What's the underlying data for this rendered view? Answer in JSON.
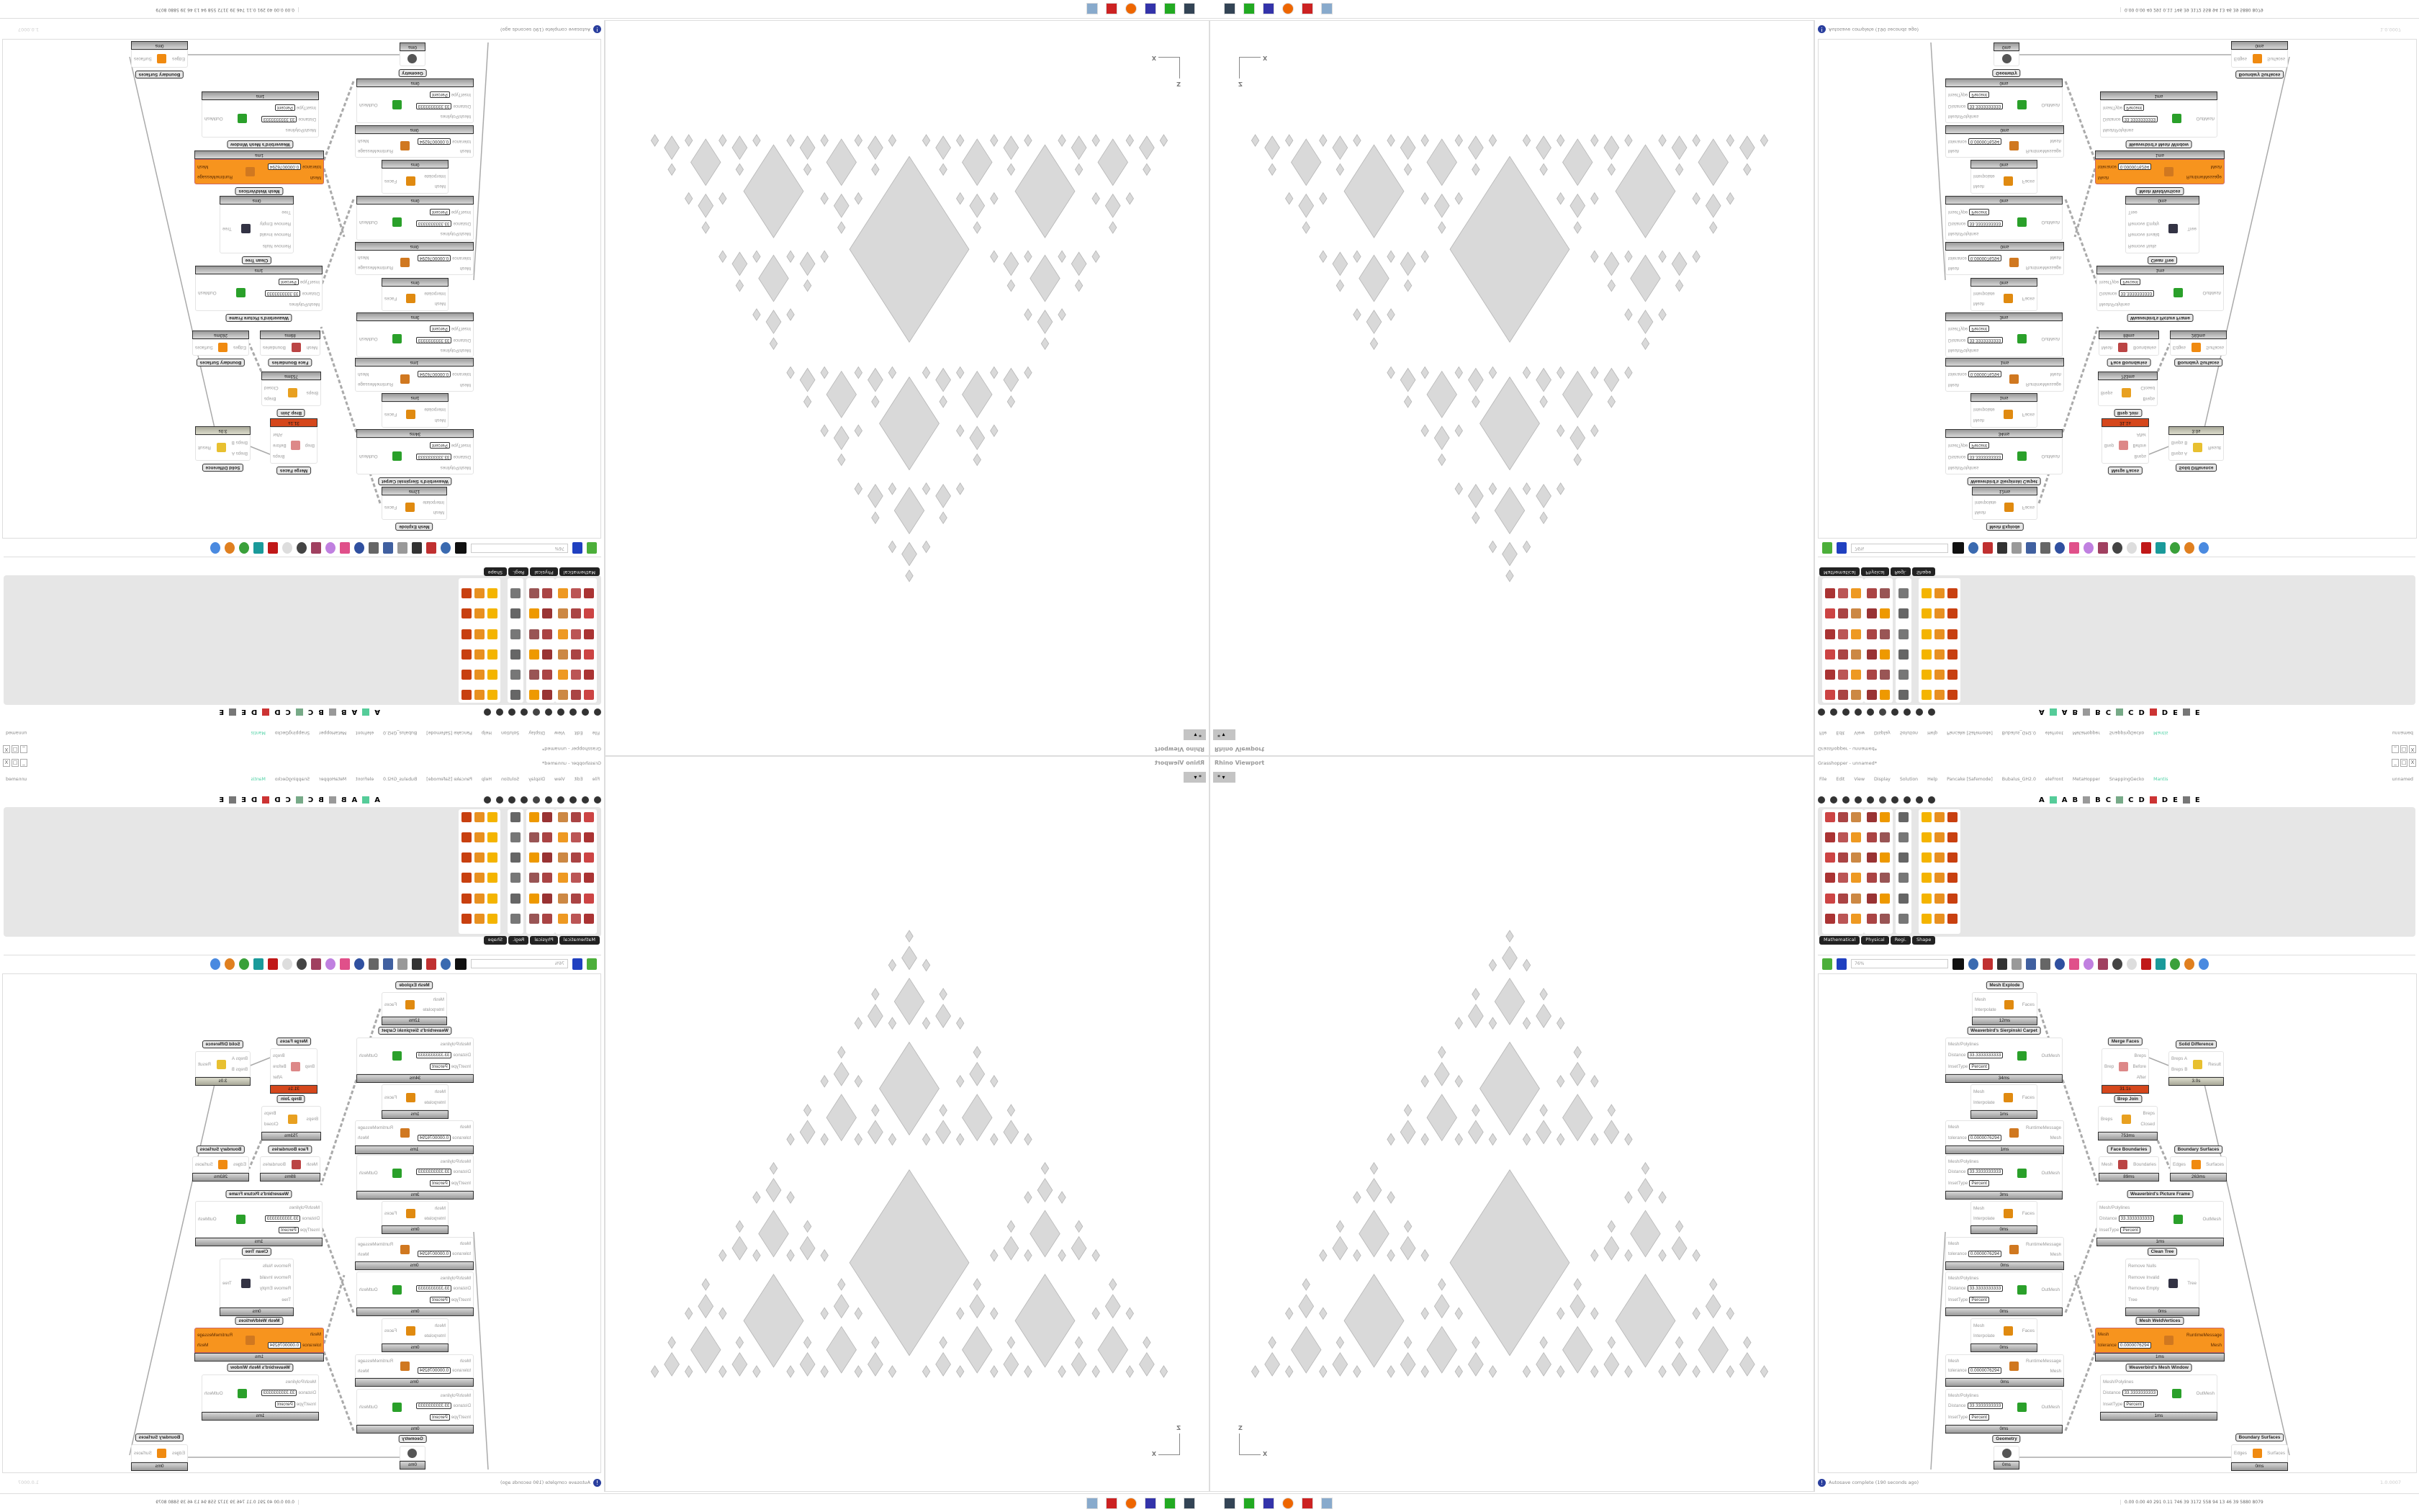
{
  "taskbar": {
    "status_numbers": "0.00 0.00 40 291 0.11 746 39 3172 558 94 13 46 39 5880 8079"
  },
  "viewport": {
    "title": "Rhino Viewport",
    "view_button": "*",
    "axis_z": "Z",
    "axis_x": "X",
    "mesh_color": "#d9d9d9"
  },
  "grasshopper": {
    "title": "Grasshopper - unnamed*",
    "document_name": "unnamed",
    "menu": [
      "File",
      "Edit",
      "View",
      "Display",
      "Solution",
      "Help",
      "Pancake [Safemode]",
      "Bubalus_GH2.0",
      "eleFront",
      "MetaHopper",
      "SnappingGecko",
      "Mantis"
    ],
    "active_menu_color": "#4fd1a5",
    "tab_letters": [
      "A",
      "A",
      "B",
      "B",
      "C",
      "C",
      "D",
      "D",
      "E",
      "E"
    ],
    "ribbon_groups": [
      "Mathematical",
      "Physical",
      "Regi.",
      "Shape"
    ],
    "zoom": "76%",
    "status": "Autosave complete (190 seconds ago)",
    "version": "1.0.0007",
    "nodes": [
      {
        "label": "Mesh Explode",
        "inputs": [
          {
            "name": "Mesh"
          },
          {
            "name": "Interpolate"
          }
        ],
        "outputs": [
          "Faces"
        ],
        "time": "12ms",
        "icon": "explode"
      },
      {
        "label": "Weaverbird's Sierpinski Carpet",
        "inputs": [
          {
            "name": "Mesh/Polylines"
          },
          {
            "name": "Distance",
            "value": "33.3333333333"
          },
          {
            "name": "InsetType",
            "value": "Percent"
          }
        ],
        "outputs": [
          "OutMesh"
        ],
        "time": "34ms",
        "icon": "wb"
      },
      {
        "inputs": [
          {
            "name": "Mesh"
          },
          {
            "name": "Interpolate"
          }
        ],
        "outputs": [
          "Faces"
        ],
        "time": "1ms",
        "icon": "explode"
      },
      {
        "inputs": [
          {
            "name": "Mesh"
          },
          {
            "name": "tolerance",
            "value": "0.0000076294"
          }
        ],
        "outputs": [
          "RuntimeMessage",
          "Mesh"
        ],
        "time": "1ms",
        "icon": "weld"
      },
      {
        "inputs": [
          {
            "name": "Mesh/Polylines"
          },
          {
            "name": "Distance",
            "value": "33.3333333333"
          },
          {
            "name": "InsetType",
            "value": "Percent"
          }
        ],
        "outputs": [
          "OutMesh"
        ],
        "time": "3ms",
        "icon": "wb"
      },
      {
        "inputs": [
          {
            "name": "Mesh"
          },
          {
            "name": "Interpolate"
          }
        ],
        "outputs": [
          "Faces"
        ],
        "time": "0ms",
        "icon": "explode"
      },
      {
        "inputs": [
          {
            "name": "Mesh"
          },
          {
            "name": "tolerance",
            "value": "0.0000076294"
          }
        ],
        "outputs": [
          "RuntimeMessage",
          "Mesh"
        ],
        "time": "0ms",
        "icon": "weld"
      },
      {
        "inputs": [
          {
            "name": "Mesh/Polylines"
          },
          {
            "name": "Distance",
            "value": "33.3333333333"
          },
          {
            "name": "InsetType",
            "value": "Percent"
          }
        ],
        "outputs": [
          "OutMesh"
        ],
        "time": "0ms",
        "icon": "wb"
      },
      {
        "inputs": [
          {
            "name": "Mesh"
          },
          {
            "name": "Interpolate"
          }
        ],
        "outputs": [
          "Faces"
        ],
        "time": "0ms",
        "icon": "explode"
      },
      {
        "inputs": [
          {
            "name": "Mesh"
          },
          {
            "name": "tolerance",
            "value": "0.0000076294"
          }
        ],
        "outputs": [
          "RuntimeMessage",
          "Mesh"
        ],
        "time": "0ms",
        "icon": "weld"
      },
      {
        "inputs": [
          {
            "name": "Mesh/Polylines"
          },
          {
            "name": "Distance",
            "value": "33.3333333333"
          },
          {
            "name": "InsetType",
            "value": "Percent"
          }
        ],
        "outputs": [
          "OutMesh"
        ],
        "time": "0ms",
        "icon": "wb"
      },
      {
        "label": "Geometry",
        "inputs": [],
        "outputs": [],
        "time": "0ms",
        "icon": "geo"
      },
      {
        "label": "Merge Faces",
        "inputs": [
          {
            "name": "Brep"
          }
        ],
        "outputs": [
          "Breps",
          "Before",
          "After"
        ],
        "time": "31.1s",
        "icon": "merge",
        "state": "err"
      },
      {
        "label": "Solid Difference",
        "inputs": [
          {
            "name": "Breps A"
          },
          {
            "name": "Breps B"
          }
        ],
        "outputs": [
          "Result"
        ],
        "time": "3.0s",
        "icon": "solid",
        "state": "warn"
      },
      {
        "label": "Brep Join",
        "inputs": [
          {
            "name": "Breps"
          }
        ],
        "outputs": [
          "Breps",
          "Closed"
        ],
        "time": "753ms",
        "icon": "join"
      },
      {
        "label": "Face Boundaries",
        "inputs": [
          {
            "name": "Mesh"
          }
        ],
        "outputs": [
          "Boundaries"
        ],
        "time": "89ms",
        "icon": "face"
      },
      {
        "label": "Boundary Surfaces",
        "inputs": [
          {
            "name": "Edges"
          }
        ],
        "outputs": [
          "Surfaces"
        ],
        "time": "263ms",
        "icon": "bsrf"
      },
      {
        "label": "Weaverbird's Picture Frame",
        "inputs": [
          {
            "name": "Mesh/Polylines"
          },
          {
            "name": "Distance",
            "value": "33.3333333333"
          },
          {
            "name": "InsetType",
            "value": "Percent"
          }
        ],
        "outputs": [
          "OutMesh"
        ],
        "time": "1ms",
        "icon": "wb"
      },
      {
        "label": "Clean Tree",
        "inputs": [
          {
            "name": "Remove Nulls"
          },
          {
            "name": "Remove Invalid"
          },
          {
            "name": "Remove Empty"
          },
          {
            "name": "Tree"
          }
        ],
        "outputs": [
          "Tree"
        ],
        "time": "0ms",
        "icon": "clean"
      },
      {
        "label": "Mesh WeldVertices",
        "inputs": [
          {
            "name": "Mesh"
          },
          {
            "name": "tolerance",
            "value": "0.0000076294"
          }
        ],
        "outputs": [
          "RuntimeMessage",
          "Mesh"
        ],
        "time": "1ms",
        "icon": "weld",
        "state": "sel"
      },
      {
        "label": "Weaverbird's Mesh Window",
        "inputs": [
          {
            "name": "Mesh/Polylines"
          },
          {
            "name": "Distance",
            "value": "33.3333333333"
          },
          {
            "name": "InsetType",
            "value": "Percent"
          }
        ],
        "outputs": [
          "OutMesh"
        ],
        "time": "1ms",
        "icon": "wb"
      },
      {
        "label": "Boundary Surfaces",
        "inputs": [
          {
            "name": "Edges"
          }
        ],
        "outputs": [
          "Surfaces"
        ],
        "time": "0ms",
        "icon": "bsrf"
      }
    ]
  }
}
